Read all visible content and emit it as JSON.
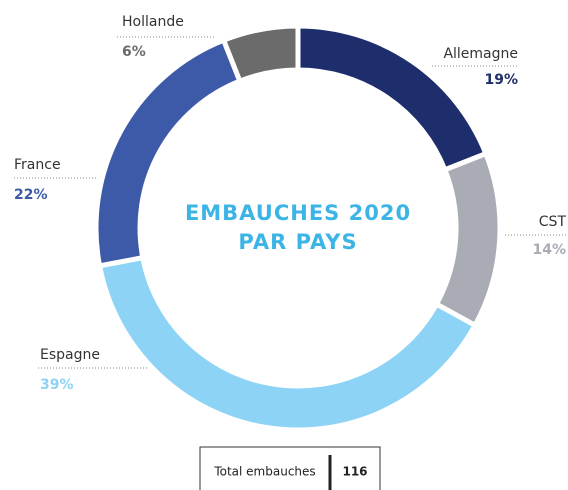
{
  "chart_data": {
    "type": "donut",
    "title": [
      "EMBAUCHES 2020",
      "PAR PAYS"
    ],
    "categories": [
      "Allemagne",
      "CST",
      "Espagne",
      "France",
      "Hollande"
    ],
    "values": [
      19,
      14,
      39,
      22,
      6
    ],
    "value_labels": [
      "19%",
      "14%",
      "39%",
      "22%",
      "6%"
    ],
    "colors": [
      "#1e2d6b",
      "#a9acb4",
      "#8dd3f5",
      "#3d5aa8",
      "#6b6b6b"
    ]
  },
  "total": {
    "label": "Total embauches",
    "value": 116
  }
}
